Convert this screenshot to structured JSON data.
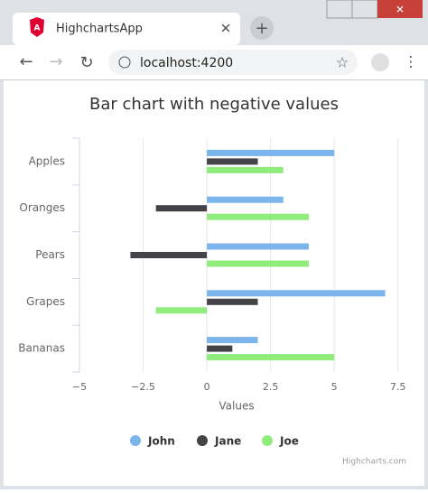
{
  "browser": {
    "tab_title": "HighchartsApp",
    "url": "localhost:4200"
  },
  "chart_data": {
    "type": "bar",
    "title": "Bar chart with negative values",
    "categories": [
      "Apples",
      "Oranges",
      "Pears",
      "Grapes",
      "Bananas"
    ],
    "series": [
      {
        "name": "John",
        "color": "#7cb5ec",
        "values": [
          5,
          3,
          4,
          7,
          2
        ]
      },
      {
        "name": "Jane",
        "color": "#434348",
        "values": [
          2,
          -2,
          -3,
          2,
          1
        ]
      },
      {
        "name": "Joe",
        "color": "#90ed7d",
        "values": [
          3,
          4,
          4,
          -2,
          5
        ]
      }
    ],
    "xlim": [
      -5,
      7.9
    ],
    "xticks": [
      {
        "value": -5,
        "label": "−5"
      },
      {
        "value": -2.5,
        "label": "−2.5"
      },
      0,
      2.5,
      5,
      7.5
    ],
    "x_axis_title": "Values",
    "grid": true,
    "legend": "bottom",
    "credits": "Highcharts.com"
  }
}
